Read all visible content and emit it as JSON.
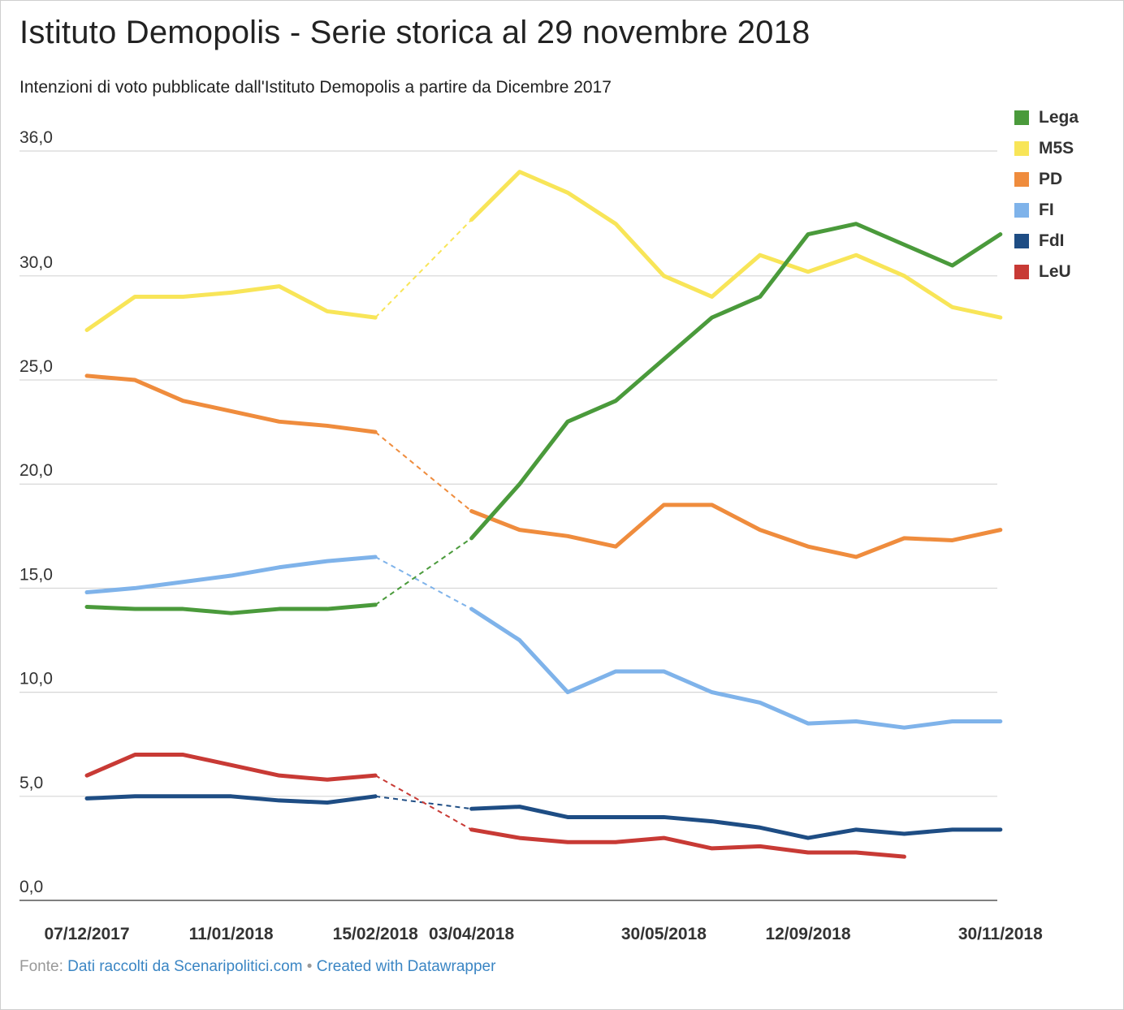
{
  "header": {
    "title": "Istituto Demopolis - Serie storica al 29 novembre 2018",
    "subtitle": "Intenzioni di voto pubblicate dall'Istituto Demopolis a partire da Dicembre 2017"
  },
  "footer": {
    "prefix": "Fonte:",
    "source_link": "Dati raccolti da Scenaripolitici.com",
    "separator": "•",
    "credit_link": "Created with Datawrapper"
  },
  "chart_data": {
    "type": "line",
    "title": "Istituto Demopolis - Serie storica al 29 novembre 2018",
    "subtitle": "Intenzioni di voto pubblicate dall'Istituto Demopolis a partire da Dicembre 2017",
    "xlabel": "",
    "ylabel": "",
    "ylim": [
      0,
      36
    ],
    "y_ticks": [
      "0,0",
      "5,0",
      "10,0",
      "15,0",
      "20,0",
      "25,0",
      "30,0",
      "36,0"
    ],
    "y_tick_values": [
      0,
      5,
      10,
      15,
      20,
      25,
      30,
      36
    ],
    "x_tick_labels": [
      "07/12/2017",
      "11/01/2018",
      "15/02/2018",
      "03/04/2018",
      "30/05/2018",
      "12/09/2018",
      "30/11/2018"
    ],
    "x_tick_indices": [
      0,
      3,
      6,
      8,
      12,
      15,
      19
    ],
    "gap_between_indices": [
      6,
      8
    ],
    "grid": true,
    "legend_position": "top-right",
    "series": [
      {
        "name": "Lega",
        "color": "#4a9a3b",
        "values": [
          14.1,
          14.0,
          14.0,
          13.8,
          14.0,
          14.0,
          14.2,
          null,
          17.4,
          20.0,
          23.0,
          24.0,
          26.0,
          28.0,
          29.0,
          32.0,
          32.5,
          31.5,
          30.5,
          32.0
        ]
      },
      {
        "name": "M5S",
        "color": "#f8e558",
        "values": [
          27.4,
          29.0,
          29.0,
          29.2,
          29.5,
          28.3,
          28.0,
          null,
          32.7,
          35.0,
          34.0,
          32.5,
          30.0,
          29.0,
          31.0,
          30.2,
          31.0,
          30.0,
          28.5,
          28.0
        ]
      },
      {
        "name": "PD",
        "color": "#ef8c3d",
        "values": [
          25.2,
          25.0,
          24.0,
          23.5,
          23.0,
          22.8,
          22.5,
          null,
          18.7,
          17.8,
          17.5,
          17.0,
          19.0,
          19.0,
          17.8,
          17.0,
          16.5,
          17.4,
          17.3,
          17.8
        ]
      },
      {
        "name": "FI",
        "color": "#7fb3ea",
        "values": [
          14.8,
          15.0,
          15.3,
          15.6,
          16.0,
          16.3,
          16.5,
          null,
          14.0,
          12.5,
          10.0,
          11.0,
          11.0,
          10.0,
          9.5,
          8.5,
          8.6,
          8.3,
          8.6,
          8.6
        ]
      },
      {
        "name": "FdI",
        "color": "#1e4d84",
        "values": [
          4.9,
          5.0,
          5.0,
          5.0,
          4.8,
          4.7,
          5.0,
          null,
          4.4,
          4.5,
          4.0,
          4.0,
          4.0,
          3.8,
          3.5,
          3.0,
          3.4,
          3.2,
          3.4,
          3.4
        ]
      },
      {
        "name": "LeU",
        "color": "#c83a35",
        "values": [
          6.0,
          7.0,
          7.0,
          6.5,
          6.0,
          5.8,
          6.0,
          null,
          3.4,
          3.0,
          2.8,
          2.8,
          3.0,
          2.5,
          2.6,
          2.3,
          2.3,
          2.1,
          null,
          null
        ]
      }
    ]
  }
}
